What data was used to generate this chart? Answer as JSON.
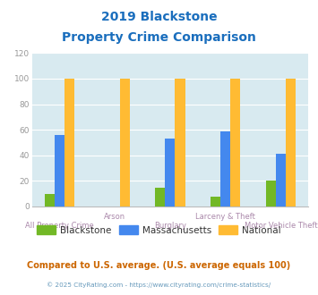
{
  "title_line1": "2019 Blackstone",
  "title_line2": "Property Crime Comparison",
  "categories": [
    "All Property Crime",
    "Arson",
    "Burglary",
    "Larceny & Theft",
    "Motor Vehicle Theft"
  ],
  "blackstone": [
    10,
    0,
    15,
    8,
    20
  ],
  "massachusetts": [
    56,
    0,
    53,
    59,
    41
  ],
  "national": [
    100,
    100,
    100,
    100,
    100
  ],
  "color_blackstone": "#72b826",
  "color_massachusetts": "#4488ee",
  "color_national": "#ffbb33",
  "ylim": [
    0,
    120
  ],
  "yticks": [
    0,
    20,
    40,
    60,
    80,
    100,
    120
  ],
  "bg_color": "#d8eaf0",
  "legend_labels": [
    "Blackstone",
    "Massachusetts",
    "National"
  ],
  "footnote1": "Compared to U.S. average. (U.S. average equals 100)",
  "footnote2": "© 2025 CityRating.com - https://www.cityrating.com/crime-statistics/",
  "title_color": "#1a6ebd",
  "footnote1_color": "#cc6600",
  "footnote2_color": "#6699bb",
  "label_color_row1": "#aa88aa",
  "label_color_row2": "#aa88aa",
  "grid_color": "#ffffff",
  "ytick_color": "#999999",
  "bar_width": 0.18
}
